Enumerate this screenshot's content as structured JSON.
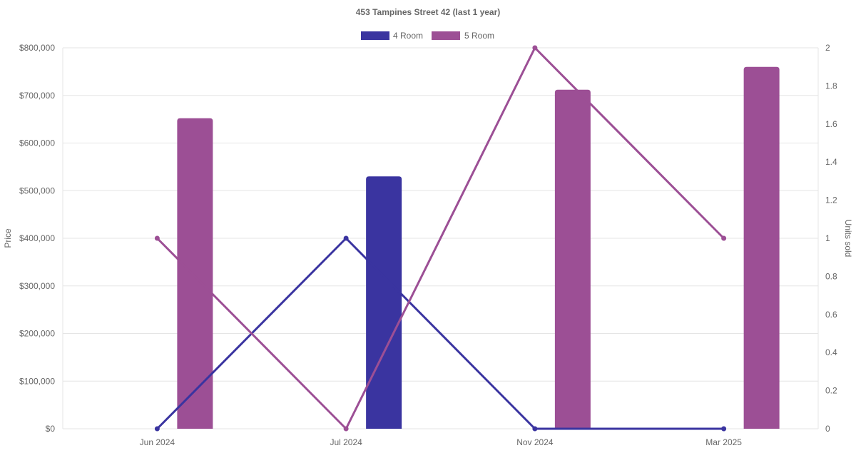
{
  "chart_data": {
    "type": "bar",
    "title": "453 Tampines Street 42 (last 1 year)",
    "categories": [
      "Jun 2024",
      "Jul 2024",
      "Nov 2024",
      "Mar 2025"
    ],
    "y_left": {
      "label": "Price",
      "range": [
        0,
        800000
      ],
      "ticks": [
        "$0",
        "$100,000",
        "$200,000",
        "$300,000",
        "$400,000",
        "$500,000",
        "$600,000",
        "$700,000",
        "$800,000"
      ]
    },
    "y_right": {
      "label": "Units sold",
      "range": [
        0,
        2
      ],
      "ticks": [
        "0",
        "0.2",
        "0.4",
        "0.6",
        "0.8",
        "1",
        "1.2",
        "1.4",
        "1.6",
        "1.8",
        "2"
      ]
    },
    "series": [
      {
        "name": "4 Room",
        "color": "#3a34a0",
        "price": [
          null,
          530000,
          null,
          null
        ],
        "units_sold": [
          0,
          1,
          0,
          0
        ]
      },
      {
        "name": "5 Room",
        "color": "#9c4f95",
        "price": [
          652000,
          null,
          712000,
          760000
        ],
        "units_sold": [
          1,
          0,
          2,
          1
        ]
      }
    ],
    "legend_position": "top-center",
    "grid": true
  }
}
